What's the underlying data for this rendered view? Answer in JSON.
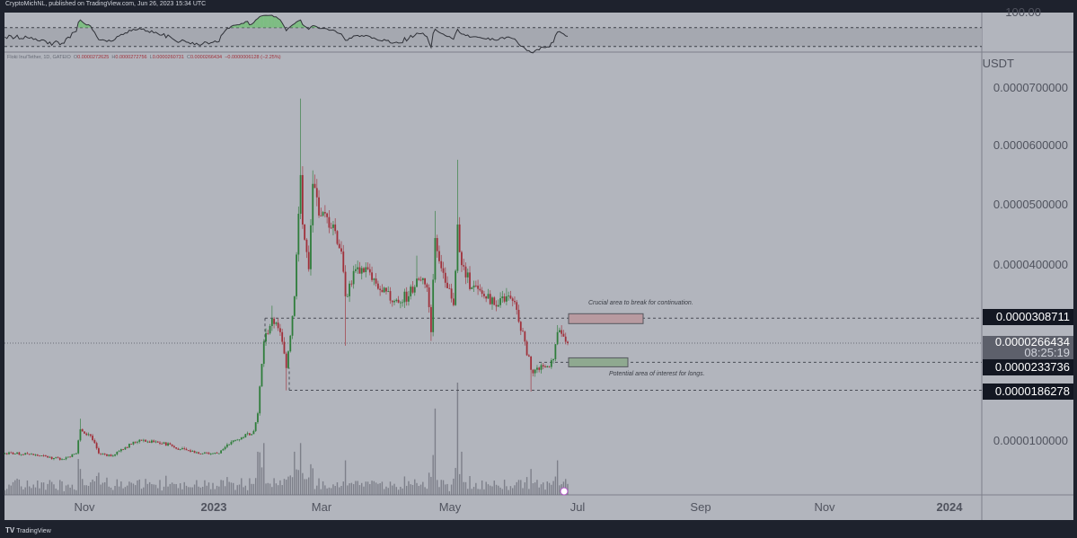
{
  "header": {
    "text": "CryptoMichNL, published on TradingView.com, Jun 26, 2023 15:34 UTC"
  },
  "legend": {
    "symbol": "Floki Inu/Tether, 1D, GATEIO",
    "open_label": "O",
    "open": "0.0000272625",
    "high_label": "H",
    "high": "0.0000272756",
    "low_label": "L",
    "low": "0.0000260731",
    "close_label": "C",
    "close": "0.0000266434",
    "change": "−0.0000006128 (−2.25%)"
  },
  "rsi_axis": {
    "top_label": "100.00"
  },
  "price_axis": {
    "currency": "USDT",
    "ticks": [
      "0.0000700000",
      "0.0000600000",
      "0.0000500000",
      "0.0000400000",
      "0.0000100000"
    ],
    "levels": {
      "resistance": "0.0000308711",
      "current": "0.0000266434",
      "countdown": "08:25:19",
      "support": "0.0000233736",
      "low": "0.0000186278"
    }
  },
  "time_axis": [
    "Nov",
    "2023",
    "Mar",
    "May",
    "Jul",
    "Sep",
    "Nov",
    "2024"
  ],
  "annotations": {
    "resistance_note": "Crucial area to break for continuation.",
    "support_note": "Potential area of interest for longs."
  },
  "footer": {
    "logo_glyph": "TV",
    "brand": "TradingView"
  },
  "colors": {
    "up": "#2f7d3b",
    "down": "#a0303a",
    "background": "#b2b5bd",
    "frame": "#1e222d",
    "volume": "#6b6e78"
  },
  "chart_data": {
    "type": "candlestick",
    "title": "Floki Inu/Tether, 1D, GATEIO",
    "ylabel": "USDT",
    "ylim": [
      0,
      7.5e-05
    ],
    "xlim": [
      "2022-09-20",
      "2024-01-20"
    ],
    "grid": false,
    "indicators": [
      "RSI",
      "Volume"
    ],
    "rsi_bands": [
      30,
      70
    ],
    "horizontal_levels": [
      3.08711e-05,
      2.66434e-05,
      2.33736e-05,
      1.86278e-05
    ],
    "zones": [
      {
        "label": "Crucial area to break for continuation.",
        "price": 3.08711e-05,
        "color": "#b89aa0"
      },
      {
        "label": "Potential area of interest for longs.",
        "price": 2.33736e-05,
        "color": "#8fa990"
      }
    ],
    "series": [
      {
        "date": "2022-09-23",
        "close": 7.9e-06
      },
      {
        "date": "2022-10-04",
        "close": 7.8e-06
      },
      {
        "date": "2022-10-17",
        "close": 7.1e-06
      },
      {
        "date": "2022-10-21",
        "close": 6.9e-06
      },
      {
        "date": "2022-10-28",
        "close": 7.9e-06
      },
      {
        "date": "2022-10-30",
        "close": 1.2e-05,
        "high": 1.38e-05,
        "volume": 3
      },
      {
        "date": "2022-11-04",
        "close": 1.09e-05
      },
      {
        "date": "2022-11-08",
        "close": 7.9e-06
      },
      {
        "date": "2022-11-15",
        "close": 7.5e-06
      },
      {
        "date": "2022-11-19",
        "close": 8.6e-06
      },
      {
        "date": "2022-11-28",
        "close": 1.02e-05
      },
      {
        "date": "2022-12-02",
        "close": 9.9e-06
      },
      {
        "date": "2022-12-13",
        "close": 9.4e-06
      },
      {
        "date": "2022-12-18",
        "close": 8.6e-06
      },
      {
        "date": "2022-12-29",
        "close": 7.9e-06
      },
      {
        "date": "2023-01-06",
        "close": 7.9e-06
      },
      {
        "date": "2023-01-10",
        "close": 9.4e-06
      },
      {
        "date": "2023-01-17",
        "close": 1.06e-05
      },
      {
        "date": "2023-01-23",
        "close": 1.17e-05
      },
      {
        "date": "2023-01-25",
        "close": 1.47e-05,
        "volume": 5
      },
      {
        "date": "2023-01-28",
        "close": 2.69e-05,
        "volume": 6
      },
      {
        "date": "2023-02-01",
        "close": 3.08e-05,
        "high": 3.3e-05
      },
      {
        "date": "2023-02-05",
        "close": 2.85e-05
      },
      {
        "date": "2023-02-08",
        "close": 2.24e-05,
        "low": 1.86e-05
      },
      {
        "date": "2023-02-12",
        "close": 3.46e-05,
        "volume": 5
      },
      {
        "date": "2023-02-15",
        "close": 5.52e-05,
        "high": 6.82e-05,
        "volume": 6
      },
      {
        "date": "2023-02-16",
        "close": 4.68e-05
      },
      {
        "date": "2023-02-19",
        "close": 3.92e-05
      },
      {
        "date": "2023-02-21",
        "close": 5.37e-05,
        "high": 5.6e-05
      },
      {
        "date": "2023-02-25",
        "close": 4.83e-05
      },
      {
        "date": "2023-03-03",
        "close": 4.68e-05
      },
      {
        "date": "2023-03-07",
        "close": 4.22e-05
      },
      {
        "date": "2023-03-09",
        "close": 3.46e-05,
        "low": 2.62e-05,
        "volume": 4
      },
      {
        "date": "2023-03-14",
        "close": 3.92e-05
      },
      {
        "date": "2023-03-20",
        "close": 3.92e-05
      },
      {
        "date": "2023-03-27",
        "close": 3.53e-05
      },
      {
        "date": "2023-04-02",
        "close": 3.38e-05
      },
      {
        "date": "2023-04-09",
        "close": 3.46e-05
      },
      {
        "date": "2023-04-13",
        "close": 3.76e-05,
        "high": 4.15e-05
      },
      {
        "date": "2023-04-18",
        "close": 3.61e-05
      },
      {
        "date": "2023-04-20",
        "close": 2.85e-05,
        "low": 2.7e-05
      },
      {
        "date": "2023-04-22",
        "close": 4.45e-05,
        "high": 4.91e-05,
        "volume": 10
      },
      {
        "date": "2023-04-27",
        "close": 3.69e-05
      },
      {
        "date": "2023-05-01",
        "close": 3.31e-05
      },
      {
        "date": "2023-05-03",
        "close": 4.68e-05,
        "high": 5.78e-05,
        "volume": 13
      },
      {
        "date": "2023-05-05",
        "close": 3.99e-05,
        "volume": 5
      },
      {
        "date": "2023-05-10",
        "close": 3.61e-05
      },
      {
        "date": "2023-05-16",
        "close": 3.46e-05
      },
      {
        "date": "2023-05-23",
        "close": 3.31e-05
      },
      {
        "date": "2023-05-27",
        "close": 3.46e-05,
        "high": 3.6e-05
      },
      {
        "date": "2023-06-01",
        "close": 3.23e-05
      },
      {
        "date": "2023-06-05",
        "close": 2.69e-05
      },
      {
        "date": "2023-06-08",
        "close": 2.21e-05,
        "low": 1.84e-05,
        "volume": 3
      },
      {
        "date": "2023-06-12",
        "close": 2.21e-05
      },
      {
        "date": "2023-06-16",
        "close": 2.27e-05
      },
      {
        "date": "2023-06-19",
        "close": 2.39e-05
      },
      {
        "date": "2023-06-21",
        "close": 2.85e-05,
        "high": 2.97e-05,
        "volume": 4
      },
      {
        "date": "2023-06-26",
        "close": 2.66434e-05
      }
    ]
  }
}
